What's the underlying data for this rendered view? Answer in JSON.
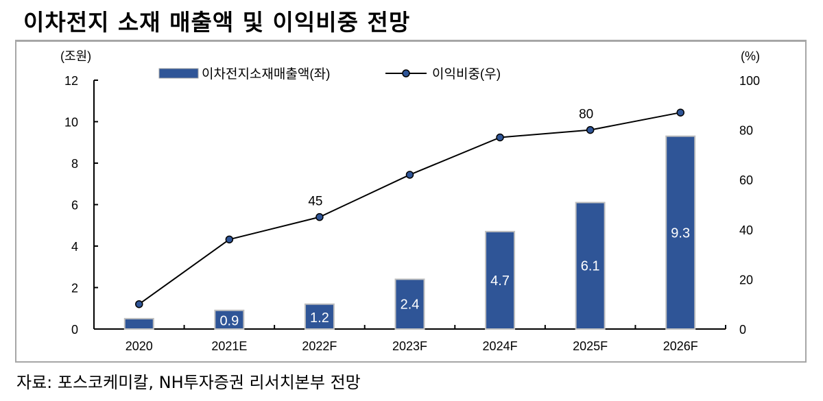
{
  "chart_data": {
    "type": "bar+line",
    "title": "이차전지 소재 매출액 및 이익비중 전망",
    "categories": [
      "2020",
      "2021E",
      "2022F",
      "2023F",
      "2024F",
      "2025F",
      "2026F"
    ],
    "series": [
      {
        "name": "이차전지소재매출액(좌)",
        "type": "bar",
        "axis": "left",
        "color": "#2f5597",
        "values": [
          0.5,
          0.9,
          1.2,
          2.4,
          4.7,
          6.1,
          9.3
        ],
        "data_labels": [
          "",
          "0.9",
          "1.2",
          "2.4",
          "4.7",
          "6.1",
          "9.3"
        ]
      },
      {
        "name": "이익비중(우)",
        "type": "line",
        "axis": "right",
        "color": "#000000",
        "marker_color": "#2f5597",
        "values": [
          10,
          36,
          45,
          62,
          77,
          80,
          87
        ],
        "data_labels": [
          "",
          "",
          "45",
          "",
          "",
          "80",
          ""
        ]
      }
    ],
    "left_axis": {
      "label": "(조원)",
      "range": [
        0,
        12
      ],
      "ticks": [
        "0",
        "2",
        "4",
        "6",
        "8",
        "10",
        "12"
      ]
    },
    "right_axis": {
      "label": "(%)",
      "range": [
        0,
        100
      ],
      "ticks": [
        "0",
        "20",
        "40",
        "60",
        "80",
        "100"
      ]
    },
    "legend_position": "top-center",
    "grid": false
  },
  "footer": {
    "source": "자료: 포스코케미칼, NH투자증권 리서치본부 전망"
  }
}
